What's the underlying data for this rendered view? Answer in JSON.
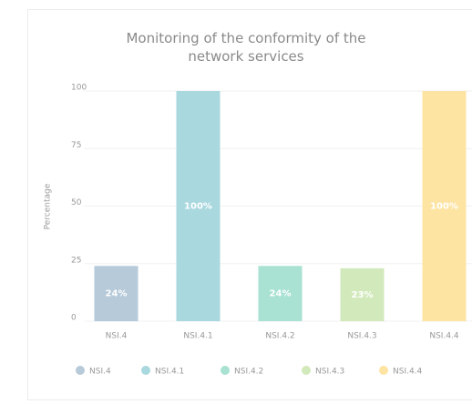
{
  "chart_data": {
    "type": "bar",
    "title": "Monitoring of the conformity of the network services",
    "y_label": "Percentage",
    "categories": [
      "NSI.4",
      "NSI.4.1",
      "NSI.4.2",
      "NSI.4.3",
      "NSI.4.4"
    ],
    "values": [
      24,
      100,
      24,
      23,
      100
    ],
    "value_labels": [
      "24%",
      "100%",
      "24%",
      "23%",
      "100%"
    ],
    "colors": [
      "#b7cad9",
      "#a9d8df",
      "#a9e2d2",
      "#d2e9bb",
      "#fde4a3"
    ],
    "ylim": [
      0,
      100
    ],
    "yticks": [
      0,
      25,
      50,
      75,
      100
    ],
    "grid": true,
    "legend": "bottom"
  }
}
